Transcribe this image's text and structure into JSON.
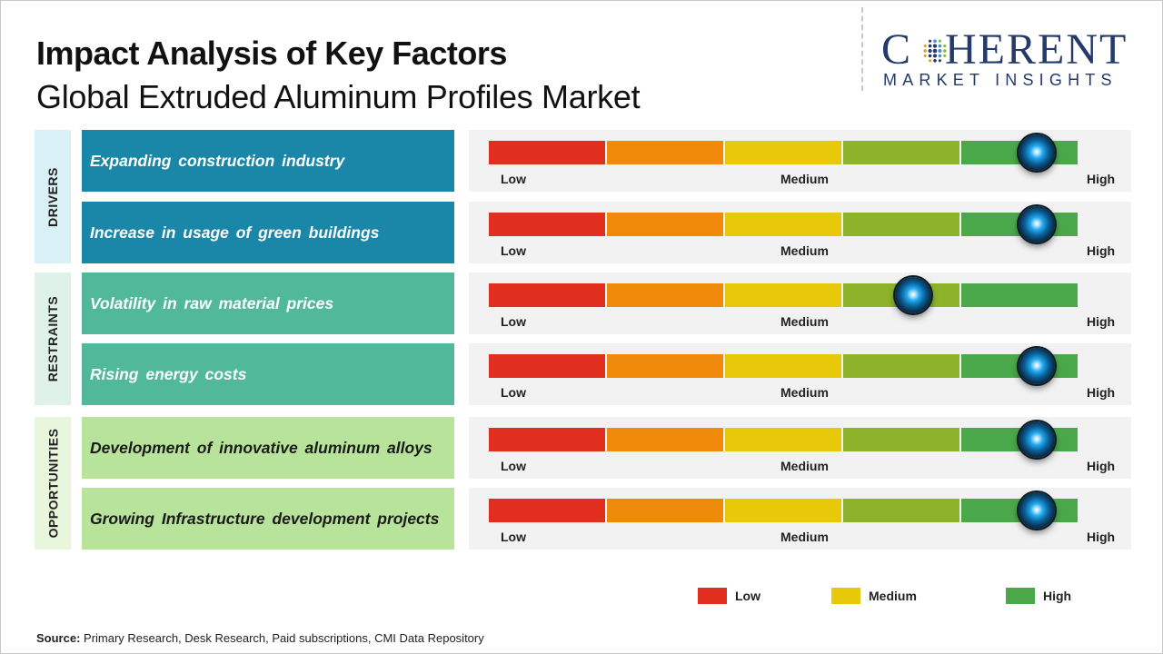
{
  "title": "Impact Analysis of Key Factors",
  "subtitle": "Global Extruded Aluminum Profiles Market",
  "logo": {
    "word": "COHERENT",
    "word_left": "C",
    "word_right": "HERENT",
    "tagline": "MARKET INSIGHTS"
  },
  "chart_data": {
    "type": "gauge",
    "scale_labels": [
      "Low",
      "Medium",
      "High"
    ],
    "segment_colors": [
      "#e02e1f",
      "#ef8a0a",
      "#e8c90a",
      "#8db32a",
      "#4aa84a"
    ],
    "categories": [
      {
        "name": "DRIVERS",
        "color": "#d9f0f7",
        "factor_color": "#1a87a8",
        "text_color": "#ffffff",
        "factors": [
          {
            "label": "Expanding construction industry",
            "impact": 0.93
          },
          {
            "label": "Increase in usage of green buildings",
            "impact": 0.93
          }
        ]
      },
      {
        "name": "RESTRAINTS",
        "color": "#dff2ea",
        "factor_color": "#52b89a",
        "text_color": "#ffffff",
        "factors": [
          {
            "label": "Volatility in raw material prices",
            "impact": 0.72
          },
          {
            "label": "Rising energy costs",
            "impact": 0.93
          }
        ]
      },
      {
        "name": "OPPORTUNITIES",
        "color": "#e8f6dc",
        "factor_color": "#b8e39a",
        "text_color": "#1a1a1a",
        "factors": [
          {
            "label": "Development of innovative aluminum alloys",
            "impact": 0.93
          },
          {
            "label": "Growing Infrastructure development projects",
            "impact": 0.93
          }
        ]
      }
    ],
    "legend": [
      {
        "label": "Low",
        "color": "#e02e1f"
      },
      {
        "label": "Medium",
        "color": "#e8c90a"
      },
      {
        "label": "High",
        "color": "#4aa84a"
      }
    ]
  },
  "source": {
    "label": "Source:",
    "text": "Primary Research, Desk Research, Paid subscriptions, CMI Data Repository"
  }
}
